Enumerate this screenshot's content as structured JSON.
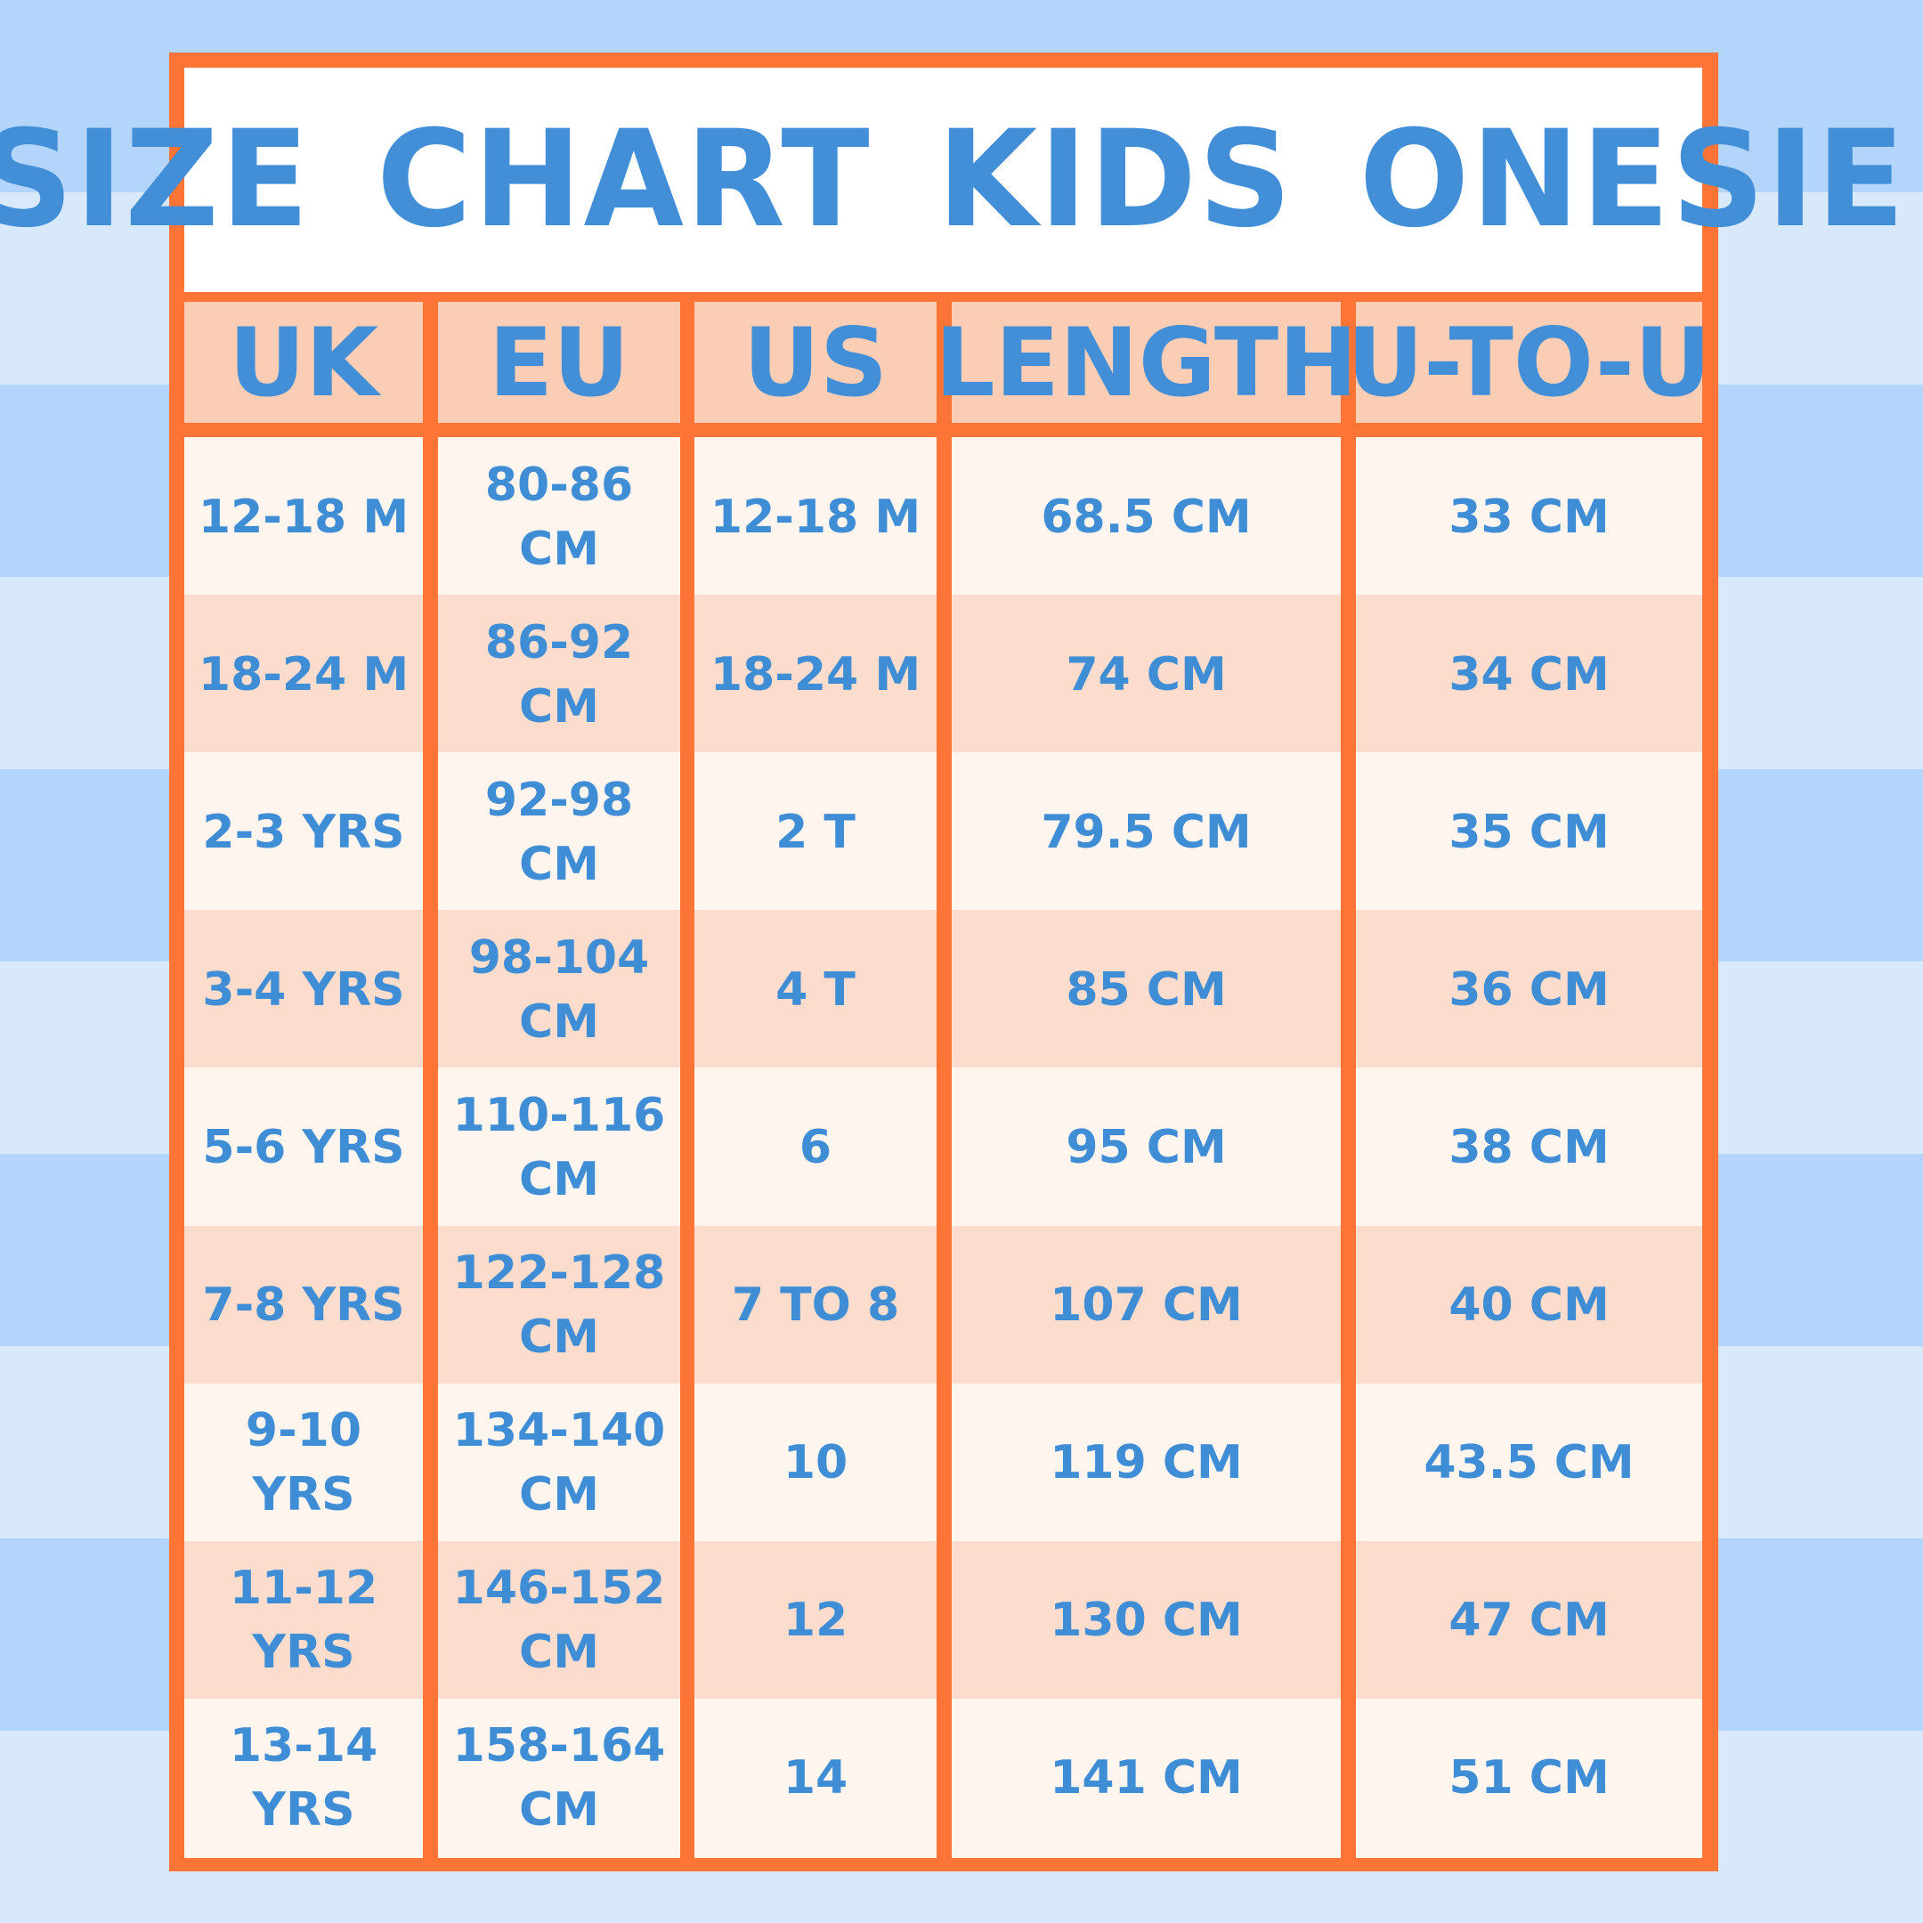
{
  "title": "SIZE CHART  KIDS ONESIE",
  "colors": {
    "border": "#fc7436",
    "header_bg": "#fbcdb5",
    "row_light": "#fef5ef",
    "row_dark": "#fcdccc",
    "text": "#428fd8",
    "stripe_dark": "#b3d4fb",
    "stripe_light": "#d8e9fc"
  },
  "table": {
    "headers": [
      "UK",
      "EU",
      "US",
      "LENGTH",
      "U-TO-U"
    ],
    "rows": [
      [
        "12-18 M",
        "80-86 CM",
        "12-18 M",
        "68.5 CM",
        "33 CM"
      ],
      [
        "18-24 M",
        "86-92 CM",
        "18-24 M",
        "74 CM",
        "34 CM"
      ],
      [
        "2-3 YRS",
        "92-98 CM",
        "2 T",
        "79.5 CM",
        "35 CM"
      ],
      [
        "3-4 YRS",
        "98-104 CM",
        "4 T",
        "85 CM",
        "36 CM"
      ],
      [
        "5-6 YRS",
        "110-116 CM",
        "6",
        "95 CM",
        "38 CM"
      ],
      [
        "7-8 YRS",
        "122-128 CM",
        "7 TO 8",
        "107 CM",
        "40 CM"
      ],
      [
        "9-10 YRS",
        "134-140 CM",
        "10",
        "119 CM",
        "43.5 CM"
      ],
      [
        "11-12 YRS",
        "146-152 CM",
        "12",
        "130 CM",
        "47 CM"
      ],
      [
        "13-14 YRS",
        "158-164 CM",
        "14",
        "141 CM",
        "51 CM"
      ]
    ]
  }
}
